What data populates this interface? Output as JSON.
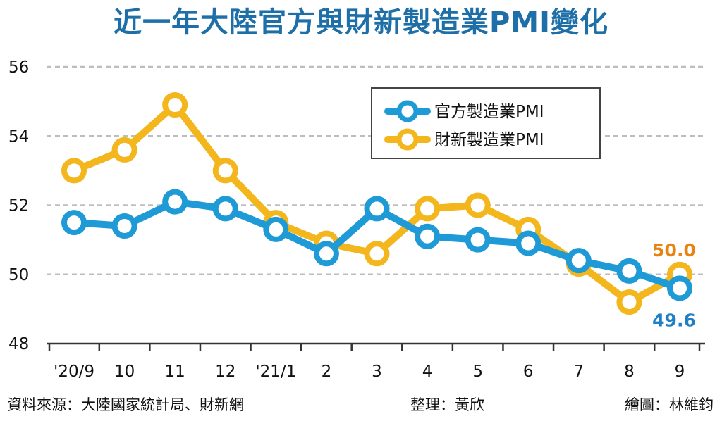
{
  "title": "近一年大陸官方與財新製造業PMI變化",
  "footer": {
    "source": "資料來源：大陸國家統計局、財新網",
    "editor": "整理：黃欣",
    "artist": "繪圖：林維鈞"
  },
  "chart_data": {
    "type": "line",
    "title": "近一年大陸官方與財新製造業PMI變化",
    "xlabel": "",
    "ylabel": "",
    "categories": [
      "'20/9",
      "10",
      "11",
      "12",
      "'21/1",
      "2",
      "3",
      "4",
      "5",
      "6",
      "7",
      "8",
      "9"
    ],
    "ylim": [
      48,
      56
    ],
    "yticks": [
      "48",
      "50",
      "52",
      "54",
      "56"
    ],
    "grid": true,
    "legend_position": "top-right",
    "series": [
      {
        "name": "官方製造業PMI",
        "color": "#1e9ad6",
        "values": [
          51.5,
          51.4,
          52.1,
          51.9,
          51.3,
          50.6,
          51.9,
          51.1,
          51.0,
          50.9,
          50.4,
          50.1,
          49.6
        ],
        "last_label": "49.6"
      },
      {
        "name": "財新製造業PMI",
        "color": "#f3b61c",
        "values": [
          53.0,
          53.6,
          54.9,
          53.0,
          51.5,
          50.9,
          50.6,
          51.9,
          52.0,
          51.3,
          50.3,
          49.2,
          50.0
        ],
        "last_label": "50.0"
      }
    ],
    "annotation_colors": {
      "官方製造業PMI": "#1e7fc4",
      "財新製造業PMI": "#e8830f"
    }
  }
}
